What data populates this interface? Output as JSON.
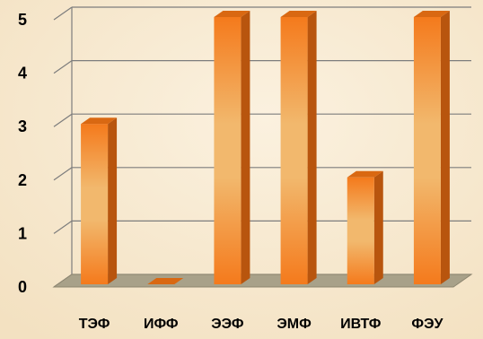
{
  "chart_data": {
    "type": "bar",
    "categories": [
      "ТЭФ",
      "ИФФ",
      "ЭЭФ",
      "ЭМФ",
      "ИВТФ",
      "ФЭУ"
    ],
    "values": [
      3,
      0,
      5,
      5,
      2,
      5
    ],
    "title": "",
    "xlabel": "",
    "ylabel": "",
    "ylim": [
      0,
      5
    ],
    "yticks": [
      "0",
      "1",
      "2",
      "3",
      "4",
      "5"
    ],
    "grid": true,
    "legend": "none",
    "colors": {
      "background": "#f7ead2",
      "bar_light": "#f2b86d",
      "bar_dark": "#f47a1c",
      "bar_side": "#b8550e",
      "bar_top": "#d96812",
      "floor": "#a8a189",
      "grid": "#7d7d7d"
    }
  }
}
